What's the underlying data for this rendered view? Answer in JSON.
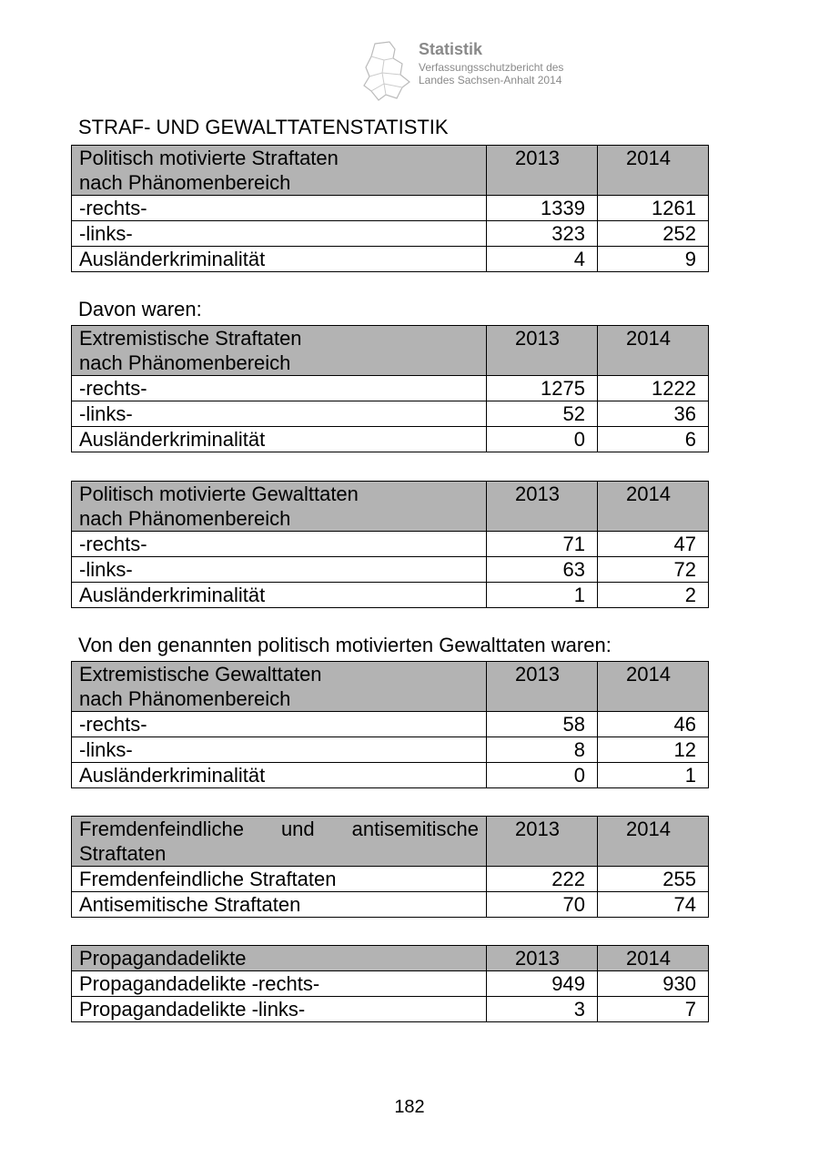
{
  "header": {
    "title": "Statistik",
    "subtitle": [
      "Verfassungsschutzbericht des",
      "Landes Sachsen-Anhalt 2014"
    ]
  },
  "heading": "STRAF- UND GEWALTTATENSTATISTIK",
  "tables": [
    {
      "header": [
        [
          "Politisch motivierte Straftaten",
          "nach Phänomenbereich"
        ],
        "2013",
        "2014"
      ],
      "rows": [
        [
          "-rechts-",
          1339,
          1261
        ],
        [
          "-links-",
          323,
          252
        ],
        [
          "Ausländerkriminalität",
          4,
          9
        ]
      ]
    },
    {
      "intro": "Davon waren:",
      "header": [
        [
          "Extremistische Straftaten",
          "nach Phänomenbereich"
        ],
        "2013",
        "2014"
      ],
      "rows": [
        [
          "-rechts-",
          1275,
          1222
        ],
        [
          "-links-",
          52,
          36
        ],
        [
          "Ausländerkriminalität",
          0,
          6
        ]
      ]
    },
    {
      "header": [
        [
          "Politisch motivierte Gewalttaten",
          "nach Phänomenbereich"
        ],
        "2013",
        "2014"
      ],
      "rows": [
        [
          "-rechts-",
          71,
          47
        ],
        [
          "-links-",
          63,
          72
        ],
        [
          "Ausländerkriminalität",
          1,
          2
        ]
      ]
    },
    {
      "intro": "Von den genannten politisch motivierten Gewalttaten waren:",
      "header": [
        [
          "Extremistische Gewalttaten",
          "nach Phänomenbereich"
        ],
        "2013",
        "2014"
      ],
      "rows": [
        [
          "-rechts-",
          58,
          46
        ],
        [
          "-links-",
          8,
          12
        ],
        [
          "Ausländerkriminalität",
          0,
          1
        ]
      ]
    },
    {
      "header": [
        [
          "Fremdenfeindliche und antisemitische",
          "Straftaten"
        ],
        "2013",
        "2014"
      ],
      "justify": true,
      "rows": [
        [
          "Fremdenfeindliche Straftaten",
          222,
          255
        ],
        [
          "Antisemitische Straftaten",
          70,
          74
        ]
      ]
    },
    {
      "header": [
        [
          "Propagandadelikte"
        ],
        "2013",
        "2014"
      ],
      "rows": [
        [
          "Propagandadelikte -rechts-",
          949,
          930
        ],
        [
          "Propagandadelikte -links-",
          3,
          7
        ]
      ]
    }
  ],
  "page_number": "182"
}
